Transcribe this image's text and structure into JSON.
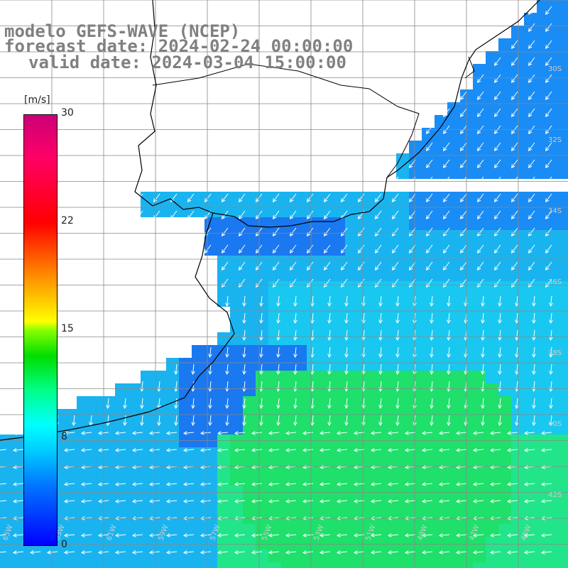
{
  "title": {
    "model": "modelo GEFS-WAVE (NCEP)",
    "forecast_date": "forecast date: 2024-02-24 00:00:00",
    "valid_date": "valid date: 2024-03-04 15:00:00"
  },
  "colorbar": {
    "unit": "[m/s]",
    "ticks": [
      "30",
      "22",
      "15",
      "8",
      "0"
    ],
    "tick_values": [
      30,
      22,
      15,
      8,
      0
    ],
    "colors": [
      "#0000ff",
      "#00ccff",
      "#00ffff",
      "#00ff88",
      "#00dd00",
      "#ffff00",
      "#ff8800",
      "#ff0000",
      "#cc0077"
    ]
  },
  "map": {
    "region": "South Atlantic off Uruguay / Rio de la Plata",
    "lon_labels": [
      "65W",
      "63W",
      "61W",
      "59W",
      "57W",
      "55W",
      "53W",
      "51W",
      "49W",
      "47W",
      "45W"
    ],
    "lat_labels": [
      "30S",
      "32S",
      "34S",
      "36S",
      "38S",
      "40S",
      "42S"
    ],
    "wind_direction": "mostly from N/NE near coast, from E in south",
    "colors": {
      "land": "#ffffff",
      "coast": "#000000",
      "grid": "#808080",
      "arrow": "#ffffff"
    }
  }
}
